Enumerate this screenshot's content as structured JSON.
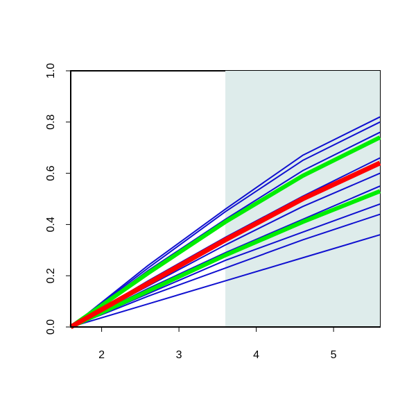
{
  "chart_data": {
    "type": "line",
    "x": [
      1.6,
      2.6,
      3.6,
      4.6,
      5.6
    ],
    "xlim": [
      1.6,
      5.6
    ],
    "ylim": [
      0,
      1
    ],
    "xticks": [
      2,
      3,
      4,
      5
    ],
    "yticks": [
      {
        "value": 0,
        "label": "0.0"
      },
      0.2,
      0.4,
      0.6,
      0.8,
      {
        "value": 1,
        "label": "1.0"
      }
    ],
    "shade": [
      3.6,
      5.6
    ],
    "shade_color": "#deeceb",
    "series": [
      {
        "color": "#1010d0",
        "linewidth": 2,
        "values": [
          0,
          0.24,
          0.46,
          0.67,
          0.82
        ]
      },
      {
        "color": "#1010d0",
        "linewidth": 2,
        "values": [
          0,
          0.23,
          0.45,
          0.65,
          0.8
        ]
      },
      {
        "color": "#1010d0",
        "linewidth": 2,
        "values": [
          0,
          0.22,
          0.42,
          0.61,
          0.76
        ]
      },
      {
        "color": "#1010d0",
        "linewidth": 2,
        "values": [
          0,
          0.18,
          0.35,
          0.51,
          0.66
        ]
      },
      {
        "color": "#1010d0",
        "linewidth": 2,
        "values": [
          0,
          0.16,
          0.32,
          0.47,
          0.6
        ]
      },
      {
        "color": "#1010d0",
        "linewidth": 2,
        "values": [
          0,
          0.15,
          0.29,
          0.42,
          0.55
        ]
      },
      {
        "color": "#1010d0",
        "linewidth": 2,
        "values": [
          0,
          0.13,
          0.26,
          0.37,
          0.48
        ]
      },
      {
        "color": "#1010d0",
        "linewidth": 2,
        "values": [
          0,
          0.12,
          0.23,
          0.34,
          0.44
        ]
      },
      {
        "color": "#1010d0",
        "linewidth": 2,
        "values": [
          0,
          0.09,
          0.18,
          0.27,
          0.36
        ]
      },
      {
        "color": "#00ee00",
        "linewidth": 6,
        "values": [
          0,
          0.21,
          0.41,
          0.59,
          0.74
        ]
      },
      {
        "color": "#00ee00",
        "linewidth": 6,
        "values": [
          0,
          0.14,
          0.28,
          0.41,
          0.53
        ]
      },
      {
        "color": "#ff0000",
        "linewidth": 7,
        "values": [
          0,
          0.17,
          0.34,
          0.5,
          0.64
        ]
      }
    ]
  }
}
